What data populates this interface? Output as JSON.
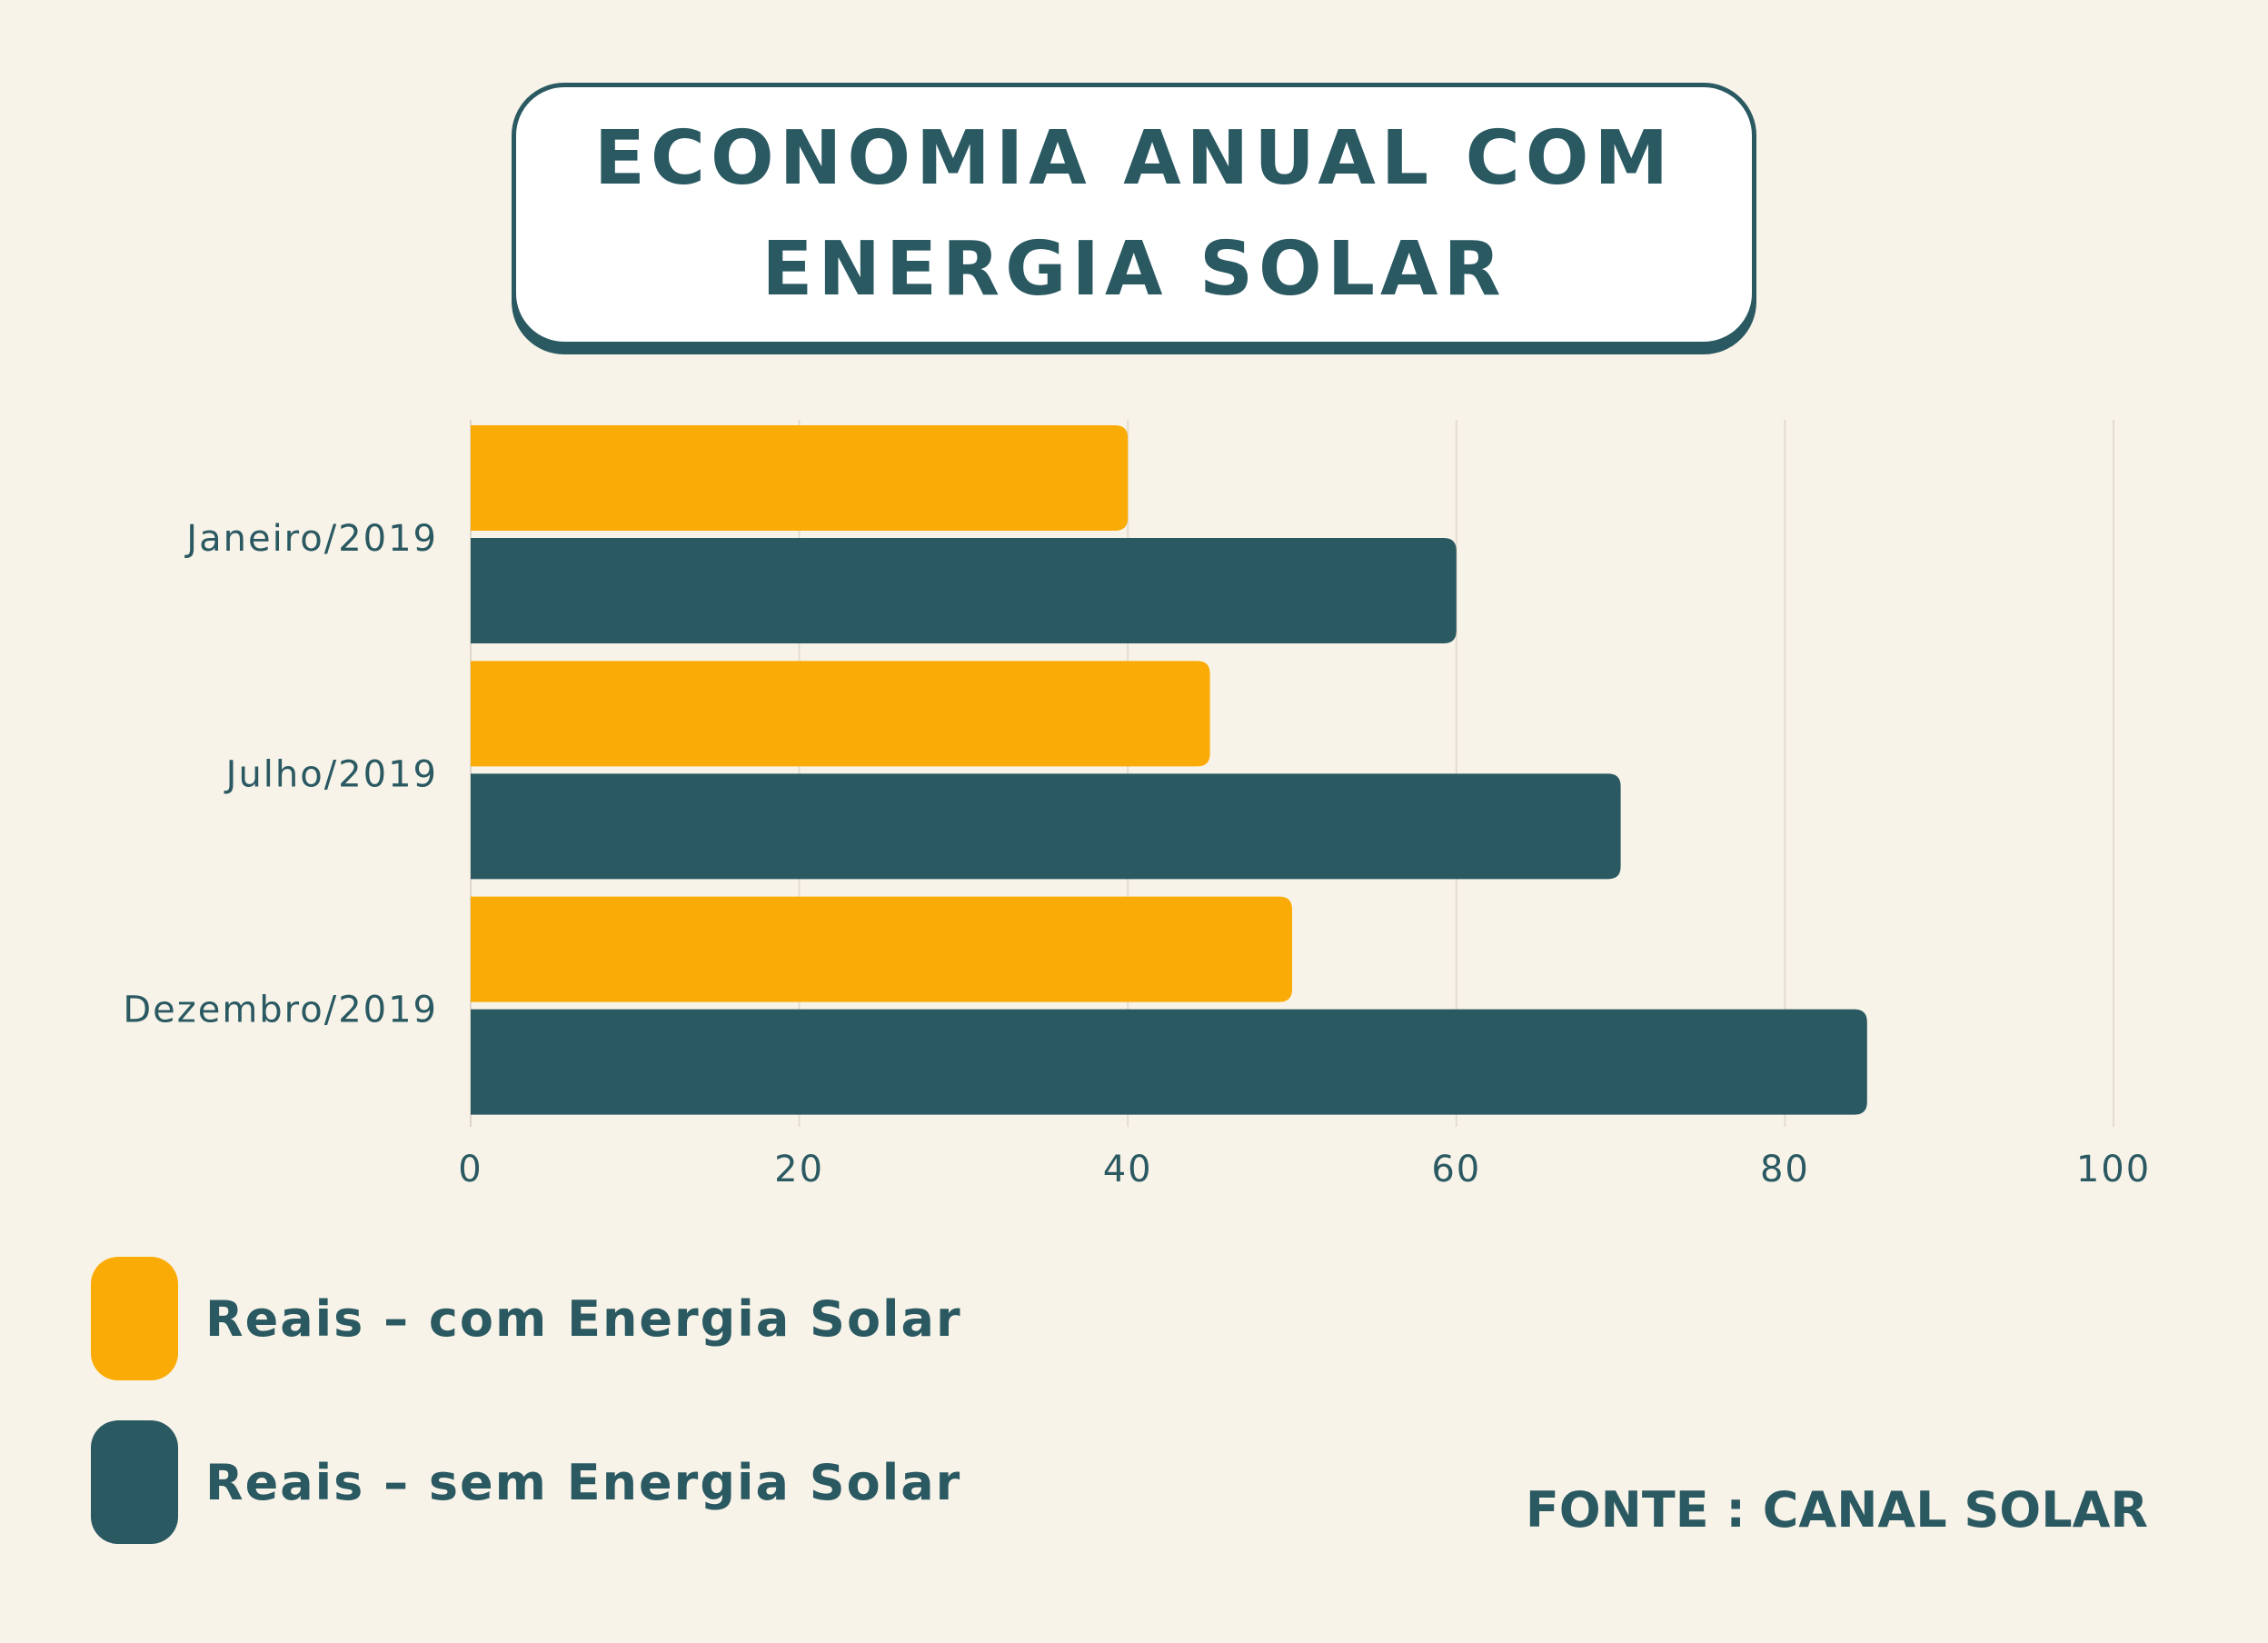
{
  "title": {
    "line1": "ECONOMIA ANUAL COM",
    "line2": "ENERGIA SOLAR"
  },
  "chart_data": {
    "type": "bar",
    "orientation": "horizontal",
    "categories": [
      "Janeiro/2019",
      "Julho/2019",
      "Dezembro/2019"
    ],
    "series": [
      {
        "name": "Reais – com Energia Solar",
        "values": [
          40,
          45,
          50
        ],
        "color": "#fbab05"
      },
      {
        "name": "Reais – sem Energia Solar",
        "values": [
          60,
          70,
          85
        ],
        "color": "#2a5962"
      }
    ],
    "xlim": [
      0,
      100
    ],
    "xticks": [
      0,
      20,
      40,
      60,
      80,
      100
    ],
    "xtick_labels": [
      "0",
      "20",
      "40",
      "60",
      "80",
      "100"
    ],
    "grid": "vertical",
    "legend_position": "bottom-left"
  },
  "legend": [
    {
      "label": "Reais – com Energia Solar",
      "color": "#fbab05"
    },
    {
      "label": "Reais – sem Energia Solar",
      "color": "#2a5962"
    }
  ],
  "source": "FONTE :  CANAL SOLAR"
}
